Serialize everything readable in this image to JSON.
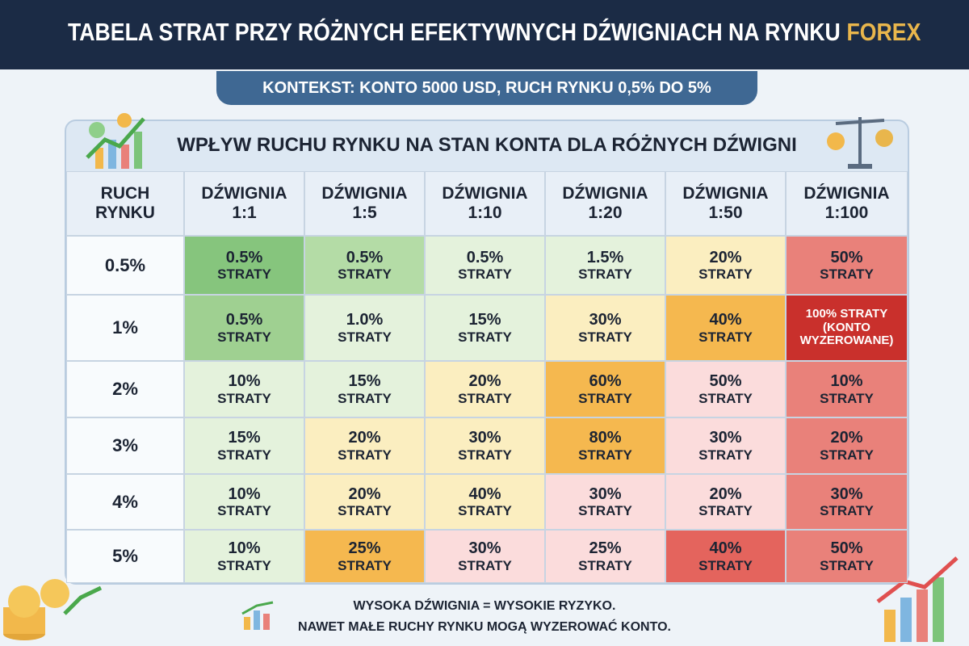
{
  "header": {
    "title": "TABELA STRAT PRZY RÓŻNYCH EFEKTYWNYCH DŹWIGNIACH NA RYNKU",
    "title_highlight": "FOREX",
    "subtitle": "KONTEKST: KONTO 5000 USD, RUCH RYNKU 0,5% DO 5%"
  },
  "table": {
    "title": "WPŁYW RUCHU RYNKU NA STAN KONTA DLA RÓŻNYCH DŹWIGNI",
    "headers": [
      [
        "RUCH",
        "RYNKU"
      ],
      [
        "DŹWIGNIA",
        "1:1"
      ],
      [
        "DŹWIGNIA",
        "1:5"
      ],
      [
        "DŹWIGNIA",
        "1:10"
      ],
      [
        "DŹWIGNIA",
        "1:20"
      ],
      [
        "DŹWIGNIA",
        "1:50"
      ],
      [
        "DŹWIGNIA",
        "1:100"
      ]
    ],
    "rows": [
      {
        "label": "0.5%",
        "cells": [
          {
            "lines": [
              "0.5%",
              "STRATY"
            ],
            "color": "#86c57d"
          },
          {
            "lines": [
              "0.5%",
              "STRATY"
            ],
            "color": "#b4dca6"
          },
          {
            "lines": [
              "0.5%",
              "STRATY"
            ],
            "color": "#e4f2dc"
          },
          {
            "lines": [
              "1.5%",
              "STRATY"
            ],
            "color": "#e4f2dc"
          },
          {
            "lines": [
              "20%",
              "STRATY"
            ],
            "color": "#fbeec0"
          },
          {
            "lines": [
              "50%",
              "STRATY"
            ],
            "color": "#e9817a"
          }
        ]
      },
      {
        "label": "1%",
        "cells": [
          {
            "lines": [
              "0.5%",
              "STRATY"
            ],
            "color": "#9fd091"
          },
          {
            "lines": [
              "1.0%",
              "STRATY"
            ],
            "color": "#e4f2dc"
          },
          {
            "lines": [
              "15%",
              "STRATY"
            ],
            "color": "#e4f2dc"
          },
          {
            "lines": [
              "30%",
              "STRATY"
            ],
            "color": "#fbeec0"
          },
          {
            "lines": [
              "40%",
              "STRATY"
            ],
            "color": "#f5b84f"
          },
          {
            "lines": [
              "100% STRATY",
              "(KONTO",
              "WYZEROWANE)"
            ],
            "color": "#c9302c",
            "text_color": "#ffffff"
          }
        ]
      },
      {
        "label": "2%",
        "cells": [
          {
            "lines": [
              "10%",
              "STRATY"
            ],
            "color": "#e4f2dc"
          },
          {
            "lines": [
              "15%",
              "STRATY"
            ],
            "color": "#e4f2dc"
          },
          {
            "lines": [
              "20%",
              "STRATY"
            ],
            "color": "#fbeec0"
          },
          {
            "lines": [
              "60%",
              "STRATY"
            ],
            "color": "#f5b84f"
          },
          {
            "lines": [
              "50%",
              "STRATY"
            ],
            "color": "#fbdcdc"
          },
          {
            "lines": [
              "10%",
              "STRATY"
            ],
            "color": "#e9817a"
          }
        ]
      },
      {
        "label": "3%",
        "cells": [
          {
            "lines": [
              "15%",
              "STRATY"
            ],
            "color": "#e4f2dc"
          },
          {
            "lines": [
              "20%",
              "STRATY"
            ],
            "color": "#fbeec0"
          },
          {
            "lines": [
              "30%",
              "STRATY"
            ],
            "color": "#fbeec0"
          },
          {
            "lines": [
              "80%",
              "STRATY"
            ],
            "color": "#f5b84f"
          },
          {
            "lines": [
              "30%",
              "STRATY"
            ],
            "color": "#fbdcdc"
          },
          {
            "lines": [
              "20%",
              "STRATY"
            ],
            "color": "#e9817a"
          }
        ]
      },
      {
        "label": "4%",
        "cells": [
          {
            "lines": [
              "10%",
              "STRATY"
            ],
            "color": "#e4f2dc"
          },
          {
            "lines": [
              "20%",
              "STRATY"
            ],
            "color": "#fbeec0"
          },
          {
            "lines": [
              "40%",
              "STRATY"
            ],
            "color": "#fbeec0"
          },
          {
            "lines": [
              "30%",
              "STRATY"
            ],
            "color": "#fbdcdc"
          },
          {
            "lines": [
              "20%",
              "STRATY"
            ],
            "color": "#fbdcdc"
          },
          {
            "lines": [
              "30%",
              "STRATY"
            ],
            "color": "#e9817a"
          }
        ]
      },
      {
        "label": "5%",
        "cells": [
          {
            "lines": [
              "10%",
              "STRATY"
            ],
            "color": "#e4f2dc"
          },
          {
            "lines": [
              "25%",
              "STRATY"
            ],
            "color": "#f5b84f"
          },
          {
            "lines": [
              "30%",
              "STRATY"
            ],
            "color": "#fbdcdc"
          },
          {
            "lines": [
              "25%",
              "STRATY"
            ],
            "color": "#fbdcdc"
          },
          {
            "lines": [
              "40%",
              "STRATY"
            ],
            "color": "#e4645d"
          },
          {
            "lines": [
              "50%",
              "STRATY"
            ],
            "color": "#e9817a"
          }
        ]
      }
    ]
  },
  "footer": {
    "lines": [
      "WYSOKA DŹWIGNIA = WYSOKIE RYZYKO.",
      "NAWET MAŁE RUCHY RYNKU MOGĄ WYZEROWAĆ KONTO."
    ]
  }
}
